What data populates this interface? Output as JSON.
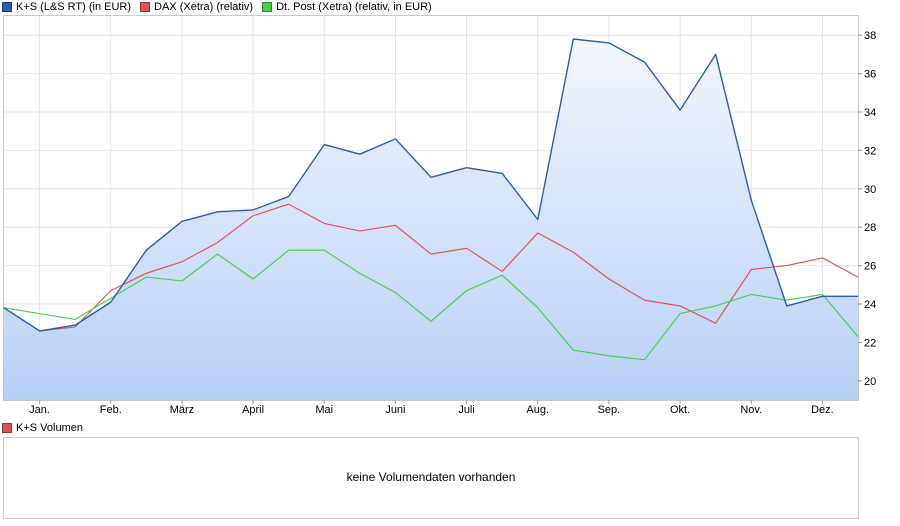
{
  "legend": [
    {
      "label": "K+S (L&S RT) (in EUR)",
      "color": "#2b5cb8"
    },
    {
      "label": "DAX (Xetra) (relativ)",
      "color": "#e05050"
    },
    {
      "label": "Dt. Post (Xetra) (relativ, in EUR)",
      "color": "#44d244"
    }
  ],
  "volume": {
    "legend_label": "K+S Volumen",
    "legend_color": "#e05050",
    "message": "keine Volumendaten vorhanden"
  },
  "chart_data": {
    "type": "line",
    "x_tick_labels": [
      "Jan.",
      "Feb.",
      "März",
      "April",
      "Mai",
      "Juni",
      "Juli",
      "Aug.",
      "Sep.",
      "Okt.",
      "Nov.",
      "Dez."
    ],
    "y_tick_labels": [
      "20",
      "22",
      "24",
      "26",
      "28",
      "30",
      "32",
      "34",
      "36",
      "38"
    ],
    "ylim": [
      19,
      39
    ],
    "y_axis_side": "right",
    "grid": true,
    "x_months": [
      0,
      0.5,
      1,
      1.5,
      2,
      2.5,
      3,
      3.5,
      4,
      4.5,
      5,
      5.5,
      6,
      6.5,
      7,
      7.5,
      8,
      8.5,
      9,
      9.5,
      10,
      10.5,
      11,
      11.5,
      12
    ],
    "series": [
      {
        "name": "K+S (L&S RT) (in EUR)",
        "color": "#2b5cb8",
        "fill": true,
        "values": [
          23.8,
          22.6,
          22.9,
          24.1,
          26.8,
          28.3,
          28.8,
          28.9,
          29.6,
          32.3,
          31.8,
          32.6,
          30.6,
          31.1,
          30.8,
          28.4,
          37.8,
          37.6,
          36.6,
          34.1,
          37.0,
          29.4,
          23.9,
          24.4,
          24.4
        ]
      },
      {
        "name": "DAX (Xetra) (relativ)",
        "color": "#e05050",
        "values": [
          23.8,
          22.6,
          22.8,
          24.7,
          25.6,
          26.2,
          27.2,
          28.6,
          29.2,
          28.2,
          27.8,
          28.1,
          26.6,
          26.9,
          25.7,
          27.7,
          26.7,
          25.3,
          24.2,
          23.9,
          23.0,
          25.8,
          26.0,
          26.4,
          25.4
        ]
      },
      {
        "name": "Dt. Post (Xetra) (relativ, in EUR)",
        "color": "#44d244",
        "values": [
          23.8,
          23.5,
          23.2,
          24.3,
          25.4,
          25.2,
          26.6,
          25.3,
          26.8,
          26.8,
          25.6,
          24.6,
          23.1,
          24.7,
          25.5,
          23.8,
          21.6,
          21.3,
          21.1,
          23.5,
          23.9,
          24.5,
          24.2,
          24.5,
          22.3
        ]
      }
    ]
  }
}
